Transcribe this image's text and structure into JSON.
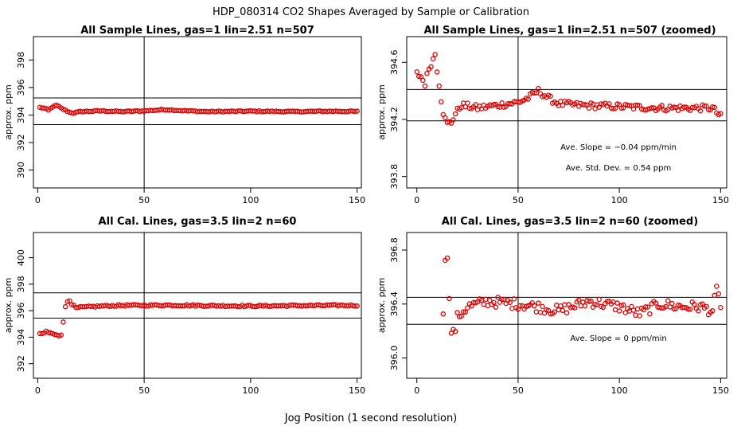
{
  "figure": {
    "title": "HDP_080314  CO2 Shapes Averaged by Sample or Calibration",
    "xlabel": "Jog Position (1 second resolution)"
  },
  "chart_data": [
    {
      "type": "scatter",
      "title": "All Sample Lines, gas=1 lin=2.51 n=507",
      "ylabel": "approx. ppm",
      "xlim": [
        -2,
        152
      ],
      "ylim": [
        388.7,
        399.7
      ],
      "xticks": [
        "0",
        "50",
        "100",
        "150"
      ],
      "yticks": [
        "390",
        "392",
        "394",
        "396",
        "398"
      ],
      "hlines": [
        395.24,
        393.3
      ],
      "vline": 50,
      "point_color": "#e00000",
      "annotations": [],
      "series": [
        {
          "profile": [
            [
              1,
              394.55
            ],
            [
              3,
              394.5
            ],
            [
              5,
              394.35
            ],
            [
              7,
              394.6
            ],
            [
              9,
              394.7
            ],
            [
              11,
              394.5
            ],
            [
              13,
              394.35
            ],
            [
              15,
              394.2
            ],
            [
              17,
              394.15
            ],
            [
              20,
              394.25
            ],
            [
              30,
              394.3
            ],
            [
              40,
              394.25
            ],
            [
              50,
              394.3
            ],
            [
              60,
              394.4
            ],
            [
              70,
              394.3
            ],
            [
              80,
              394.25
            ],
            [
              100,
              394.28
            ],
            [
              120,
              394.25
            ],
            [
              140,
              394.28
            ],
            [
              150,
              394.26
            ]
          ],
          "noise": 0.04
        }
      ]
    },
    {
      "type": "scatter",
      "title": "All Sample Lines, gas=1 lin=2.51 n=507 (zoomed)",
      "ylabel": "approx. ppm",
      "xlim": [
        -5,
        153
      ],
      "ylim": [
        393.72,
        394.78
      ],
      "xticks": [
        "0",
        "50",
        "100",
        "150"
      ],
      "yticks": [
        "393.8",
        "394.2",
        "394.6"
      ],
      "hlines": [
        394.41,
        394.19
      ],
      "vline": 50,
      "point_color": "#e00000",
      "annotations": [
        "Ave. Slope =  −0.04  ppm/min",
        "Ave. Std. Dev. =  0.54  ppm"
      ],
      "series": [
        {
          "profile": [
            [
              0,
              394.52
            ],
            [
              2,
              394.5
            ],
            [
              4,
              394.45
            ],
            [
              6,
              394.56
            ],
            [
              8,
              394.62
            ],
            [
              9,
              394.66
            ],
            [
              10,
              394.55
            ],
            [
              11,
              394.45
            ],
            [
              12,
              394.34
            ],
            [
              13,
              394.25
            ],
            [
              14,
              394.2
            ],
            [
              15,
              394.17
            ],
            [
              17,
              394.18
            ],
            [
              19,
              394.24
            ],
            [
              22,
              394.3
            ],
            [
              30,
              394.28
            ],
            [
              40,
              394.3
            ],
            [
              50,
              394.32
            ],
            [
              55,
              394.35
            ],
            [
              60,
              394.4
            ],
            [
              65,
              394.35
            ],
            [
              70,
              394.31
            ],
            [
              80,
              394.3
            ],
            [
              100,
              394.29
            ],
            [
              120,
              394.28
            ],
            [
              140,
              394.28
            ],
            [
              146,
              394.28
            ],
            [
              150,
              394.22
            ]
          ],
          "noise": 0.022
        }
      ]
    },
    {
      "type": "scatter",
      "title": "All Cal. Lines, gas=3.5 lin=2 n=60",
      "ylabel": "approx. ppm",
      "xlim": [
        -2,
        152
      ],
      "ylim": [
        390.9,
        401.9
      ],
      "xticks": [
        "0",
        "50",
        "100",
        "150"
      ],
      "yticks": [
        "392",
        "394",
        "396",
        "398",
        "400"
      ],
      "hlines": [
        397.35,
        395.44
      ],
      "vline": 50,
      "point_color": "#e00000",
      "annotations": [],
      "series": [
        {
          "profile": [
            [
              1,
              394.25
            ],
            [
              3,
              394.3
            ],
            [
              4,
              394.45
            ],
            [
              5,
              394.35
            ],
            [
              7,
              394.25
            ],
            [
              9,
              394.2
            ],
            [
              10,
              394.15
            ],
            [
              11,
              394.2
            ],
            [
              12,
              395.1
            ],
            [
              13,
              396.3
            ],
            [
              14,
              396.7
            ],
            [
              15,
              396.8
            ],
            [
              16,
              396.5
            ],
            [
              18,
              396.2
            ],
            [
              20,
              396.25
            ],
            [
              30,
              396.35
            ],
            [
              40,
              396.4
            ],
            [
              50,
              396.4
            ],
            [
              60,
              396.42
            ],
            [
              80,
              396.38
            ],
            [
              100,
              396.35
            ],
            [
              120,
              396.38
            ],
            [
              140,
              396.4
            ],
            [
              150,
              396.4
            ]
          ],
          "noise": 0.06
        }
      ]
    },
    {
      "type": "scatter",
      "title": "All Cal. Lines, gas=3.5 lin=2 n=60 (zoomed)",
      "ylabel": "approx. ppm",
      "xlim": [
        -5,
        153
      ],
      "ylim": [
        395.85,
        396.93
      ],
      "xticks": [
        "0",
        "50",
        "100",
        "150"
      ],
      "yticks": [
        "396.0",
        "396.4",
        "396.8"
      ],
      "hlines": [
        396.45,
        396.25
      ],
      "vline": 50,
      "point_color": "#e00000",
      "annotations": [
        "Ave. Slope =  0  ppm/min"
      ],
      "series": [
        {
          "start": 13,
          "profile": [
            [
              13,
              396.3
            ],
            [
              14,
              396.75
            ],
            [
              15,
              396.78
            ],
            [
              16,
              396.42
            ],
            [
              17,
              396.2
            ],
            [
              18,
              396.18
            ],
            [
              19,
              396.22
            ],
            [
              20,
              396.3
            ],
            [
              25,
              396.38
            ],
            [
              35,
              396.42
            ],
            [
              50,
              396.4
            ],
            [
              60,
              396.38
            ],
            [
              70,
              396.35
            ],
            [
              85,
              396.42
            ],
            [
              100,
              396.38
            ],
            [
              110,
              396.33
            ],
            [
              120,
              396.4
            ],
            [
              130,
              396.38
            ],
            [
              140,
              396.38
            ],
            [
              146,
              396.35
            ],
            [
              148,
              396.5
            ],
            [
              150,
              396.4
            ]
          ],
          "noise": 0.04
        }
      ]
    }
  ]
}
